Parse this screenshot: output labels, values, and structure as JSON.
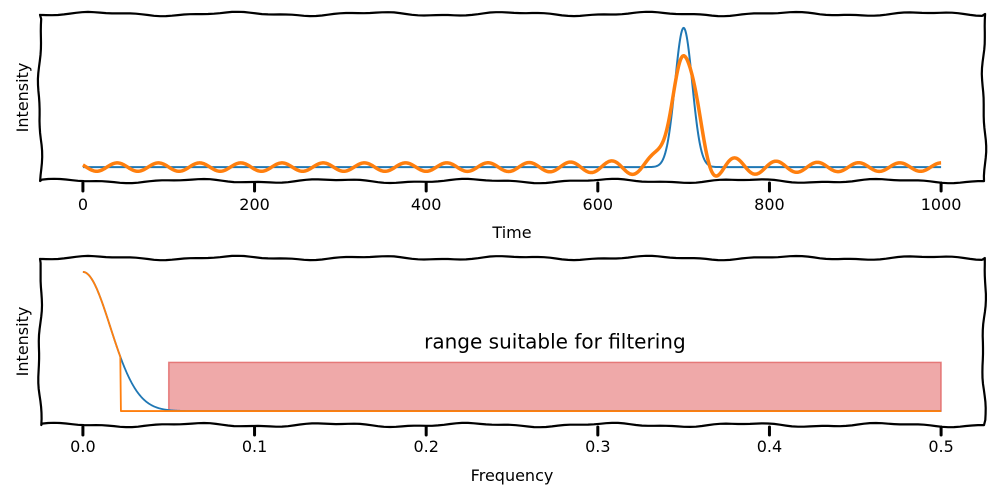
{
  "chart_data": [
    {
      "type": "line",
      "title": "",
      "xlabel": "Time",
      "ylabel": "Intensity",
      "xlim": [
        -50,
        1050
      ],
      "ylim": [
        -0.1,
        1.1
      ],
      "xticks": [
        0,
        200,
        400,
        600,
        800,
        1000
      ],
      "xtick_labels": [
        "0",
        "200",
        "400",
        "600",
        "800",
        "1000"
      ],
      "grid": false,
      "series": [
        {
          "color": "#1f77b4",
          "curve": "gaussian",
          "peak_x": 700,
          "peak_y": 1.0,
          "baseline_y": 0.0,
          "sigma": 10
        },
        {
          "color": "#ff7f0e",
          "curve": "filtered-gaussian",
          "peak_x": 700,
          "peak_y": 0.8,
          "baseline_y": 0.0,
          "ripple_period": 48,
          "ripple_amplitude": 0.03
        }
      ]
    },
    {
      "type": "line",
      "title": "",
      "xlabel": "Frequency",
      "ylabel": "Intensity",
      "xlim": [
        -0.025,
        0.525
      ],
      "ylim": [
        -0.1,
        1.1
      ],
      "xticks": [
        0.0,
        0.1,
        0.2,
        0.3,
        0.4,
        0.5
      ],
      "xtick_labels": [
        "0.0",
        "0.1",
        "0.2",
        "0.3",
        "0.4",
        "0.5"
      ],
      "grid": false,
      "series": [
        {
          "color": "#1f77b4",
          "curve": "gaussian-spectrum",
          "x_range": [
            0.0,
            0.5
          ],
          "start_y": 1.0,
          "sigma": 0.0159
        },
        {
          "color": "#ff7f0e",
          "curve": "gaussian-spectrum-cutoff",
          "x_range": [
            0.0,
            0.5
          ],
          "start_y": 1.0,
          "sigma": 0.0159,
          "cutoff_x": 0.022
        }
      ],
      "shaded_region": {
        "x_range": [
          0.05,
          0.5
        ],
        "y_range": [
          0.0,
          0.35
        ],
        "color": "#d62728",
        "opacity": 0.4
      },
      "annotations": [
        {
          "text": "range suitable for filtering",
          "x": 0.275,
          "y": 0.45
        }
      ]
    }
  ]
}
